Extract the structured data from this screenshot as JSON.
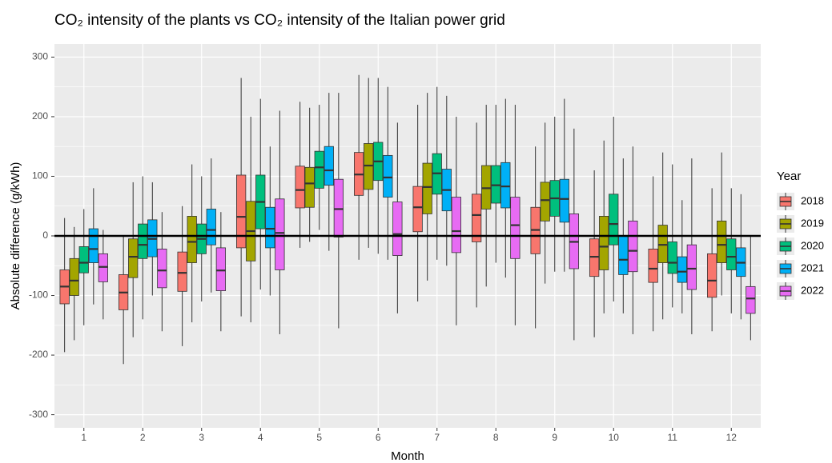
{
  "chart_data": {
    "type": "boxplot",
    "title": "CO₂ intensity of the plants vs CO₂ intensity of the Italian power grid",
    "x_label": "Month",
    "y_label": "Absolute difference (g/kWh)",
    "legend_title": "Year",
    "legend_position": "right",
    "categories": [
      "1",
      "2",
      "3",
      "4",
      "5",
      "6",
      "7",
      "8",
      "9",
      "10",
      "11",
      "12"
    ],
    "ylim": [
      -322,
      322
    ],
    "yticks": [
      -300,
      -200,
      -100,
      0,
      100,
      200,
      300
    ],
    "grid": true,
    "hline": 0,
    "series": [
      {
        "name": "2018",
        "color": "#F8766D",
        "values": [
          {
            "min": -195,
            "q1": -114,
            "median": -85,
            "q3": -57,
            "max": 30
          },
          {
            "min": -215,
            "q1": -124,
            "median": -95,
            "q3": -65,
            "max": 0
          },
          {
            "min": -185,
            "q1": -93,
            "median": -62,
            "q3": -27,
            "max": 50
          },
          {
            "min": -135,
            "q1": -20,
            "median": 32,
            "q3": 102,
            "max": 265
          },
          {
            "min": -20,
            "q1": 47,
            "median": 77,
            "q3": 117,
            "max": 225
          },
          {
            "min": -40,
            "q1": 68,
            "median": 103,
            "q3": 140,
            "max": 270
          },
          {
            "min": -110,
            "q1": 7,
            "median": 48,
            "q3": 83,
            "max": 220
          },
          {
            "min": -120,
            "q1": -10,
            "median": 35,
            "q3": 70,
            "max": 190
          },
          {
            "min": -155,
            "q1": -30,
            "median": 10,
            "q3": 48,
            "max": 150
          },
          {
            "min": -170,
            "q1": -68,
            "median": -35,
            "q3": -5,
            "max": 110
          },
          {
            "min": -160,
            "q1": -78,
            "median": -55,
            "q3": -22,
            "max": 100
          },
          {
            "min": -160,
            "q1": -103,
            "median": -75,
            "q3": -30,
            "max": 80
          }
        ]
      },
      {
        "name": "2019",
        "color": "#A3A500",
        "values": [
          {
            "min": -175,
            "q1": -100,
            "median": -75,
            "q3": -38,
            "max": 15
          },
          {
            "min": -170,
            "q1": -70,
            "median": -35,
            "q3": -5,
            "max": 90
          },
          {
            "min": -145,
            "q1": -45,
            "median": -10,
            "q3": 33,
            "max": 120
          },
          {
            "min": -145,
            "q1": -42,
            "median": 8,
            "q3": 58,
            "max": 200
          },
          {
            "min": -10,
            "q1": 48,
            "median": 88,
            "q3": 115,
            "max": 215
          },
          {
            "min": -20,
            "q1": 78,
            "median": 118,
            "q3": 155,
            "max": 265
          },
          {
            "min": -75,
            "q1": 37,
            "median": 82,
            "q3": 122,
            "max": 240
          },
          {
            "min": -85,
            "q1": 45,
            "median": 80,
            "q3": 118,
            "max": 220
          },
          {
            "min": -80,
            "q1": 25,
            "median": 60,
            "q3": 90,
            "max": 190
          },
          {
            "min": -130,
            "q1": -57,
            "median": -18,
            "q3": 33,
            "max": 160
          },
          {
            "min": -140,
            "q1": -45,
            "median": -15,
            "q3": 18,
            "max": 140
          },
          {
            "min": -100,
            "q1": -45,
            "median": -15,
            "q3": 25,
            "max": 140
          }
        ]
      },
      {
        "name": "2020",
        "color": "#00BF7D",
        "values": [
          {
            "min": -150,
            "q1": -62,
            "median": -45,
            "q3": -18,
            "max": 45
          },
          {
            "min": -140,
            "q1": -38,
            "median": -15,
            "q3": 20,
            "max": 100
          },
          {
            "min": -110,
            "q1": -30,
            "median": -5,
            "q3": 20,
            "max": 100
          },
          {
            "min": -90,
            "q1": 12,
            "median": 57,
            "q3": 102,
            "max": 230
          },
          {
            "min": 10,
            "q1": 80,
            "median": 115,
            "q3": 142,
            "max": 220
          },
          {
            "min": -30,
            "q1": 93,
            "median": 125,
            "q3": 157,
            "max": 265
          },
          {
            "min": -40,
            "q1": 70,
            "median": 105,
            "q3": 138,
            "max": 250
          },
          {
            "min": -45,
            "q1": 55,
            "median": 85,
            "q3": 118,
            "max": 220
          },
          {
            "min": -60,
            "q1": 33,
            "median": 63,
            "q3": 93,
            "max": 200
          },
          {
            "min": -110,
            "q1": -15,
            "median": 20,
            "q3": 70,
            "max": 200
          },
          {
            "min": -120,
            "q1": -63,
            "median": -45,
            "q3": -10,
            "max": 120
          },
          {
            "min": -130,
            "q1": -57,
            "median": -35,
            "q3": -5,
            "max": 80
          }
        ]
      },
      {
        "name": "2021",
        "color": "#00B0F6",
        "values": [
          {
            "min": -115,
            "q1": -45,
            "median": -22,
            "q3": 12,
            "max": 80
          },
          {
            "min": -100,
            "q1": -35,
            "median": -5,
            "q3": 27,
            "max": 90
          },
          {
            "min": -95,
            "q1": -15,
            "median": 10,
            "q3": 45,
            "max": 130
          },
          {
            "min": -100,
            "q1": -20,
            "median": 12,
            "q3": 48,
            "max": 150
          },
          {
            "min": -25,
            "q1": 85,
            "median": 110,
            "q3": 150,
            "max": 240
          },
          {
            "min": -40,
            "q1": 65,
            "median": 98,
            "q3": 135,
            "max": 250
          },
          {
            "min": -50,
            "q1": 42,
            "median": 77,
            "q3": 112,
            "max": 235
          },
          {
            "min": -70,
            "q1": 47,
            "median": 83,
            "q3": 123,
            "max": 230
          },
          {
            "min": -60,
            "q1": 23,
            "median": 62,
            "q3": 95,
            "max": 230
          },
          {
            "min": -130,
            "q1": -65,
            "median": -40,
            "q3": 0,
            "max": 130
          },
          {
            "min": -130,
            "q1": -78,
            "median": -60,
            "q3": -35,
            "max": 60
          },
          {
            "min": -140,
            "q1": -68,
            "median": -45,
            "q3": -20,
            "max": 70
          }
        ]
      },
      {
        "name": "2022",
        "color": "#E76BF3",
        "values": [
          {
            "min": -140,
            "q1": -77,
            "median": -52,
            "q3": -30,
            "max": 10
          },
          {
            "min": -160,
            "q1": -87,
            "median": -58,
            "q3": -22,
            "max": 40
          },
          {
            "min": -160,
            "q1": -92,
            "median": -58,
            "q3": -20,
            "max": 40
          },
          {
            "min": -165,
            "q1": -57,
            "median": 5,
            "q3": 62,
            "max": 210
          },
          {
            "min": -155,
            "q1": -2,
            "median": 45,
            "q3": 95,
            "max": 240
          },
          {
            "min": -130,
            "q1": -33,
            "median": 3,
            "q3": 57,
            "max": 190
          },
          {
            "min": -150,
            "q1": -28,
            "median": 8,
            "q3": 65,
            "max": 200
          },
          {
            "min": -150,
            "q1": -38,
            "median": 18,
            "q3": 65,
            "max": 220
          },
          {
            "min": -175,
            "q1": -55,
            "median": -10,
            "q3": 37,
            "max": 180
          },
          {
            "min": -165,
            "q1": -60,
            "median": -25,
            "q3": 25,
            "max": 150
          },
          {
            "min": -165,
            "q1": -90,
            "median": -55,
            "q3": -15,
            "max": 130
          },
          {
            "min": -175,
            "q1": -130,
            "median": -105,
            "q3": -85,
            "max": 0
          }
        ]
      }
    ]
  }
}
